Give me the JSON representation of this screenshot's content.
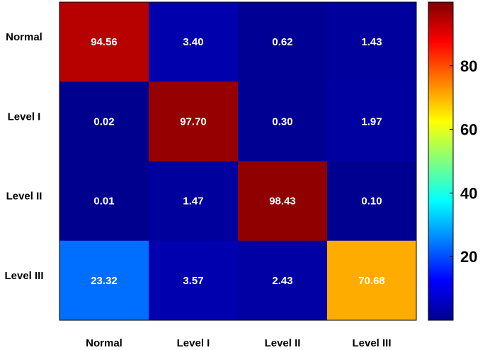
{
  "chart_data": {
    "type": "heatmap",
    "title": "",
    "xlabel": "",
    "ylabel": "",
    "x_categories": [
      "Normal",
      "Level I",
      "Level II",
      "Level III"
    ],
    "y_categories": [
      "Normal",
      "Level I",
      "Level II",
      "Level III"
    ],
    "values": [
      [
        94.56,
        3.4,
        0.62,
        1.43
      ],
      [
        0.02,
        97.7,
        0.3,
        1.97
      ],
      [
        0.01,
        1.47,
        98.43,
        0.1
      ],
      [
        23.32,
        3.57,
        2.43,
        70.68
      ]
    ],
    "value_labels": [
      [
        "94.56",
        "3.40",
        "0.62",
        "1.43"
      ],
      [
        "0.02",
        "97.70",
        "0.30",
        "1.97"
      ],
      [
        "0.01",
        "1.47",
        "98.43",
        "0.10"
      ],
      [
        "23.32",
        "3.57",
        "2.43",
        "70.68"
      ]
    ],
    "colorbar": {
      "colormap": "jet",
      "range": [
        0,
        100
      ],
      "ticks": [
        20,
        40,
        60,
        80
      ],
      "tick_labels": [
        "20",
        "40",
        "60",
        "80"
      ]
    },
    "grid": false
  }
}
